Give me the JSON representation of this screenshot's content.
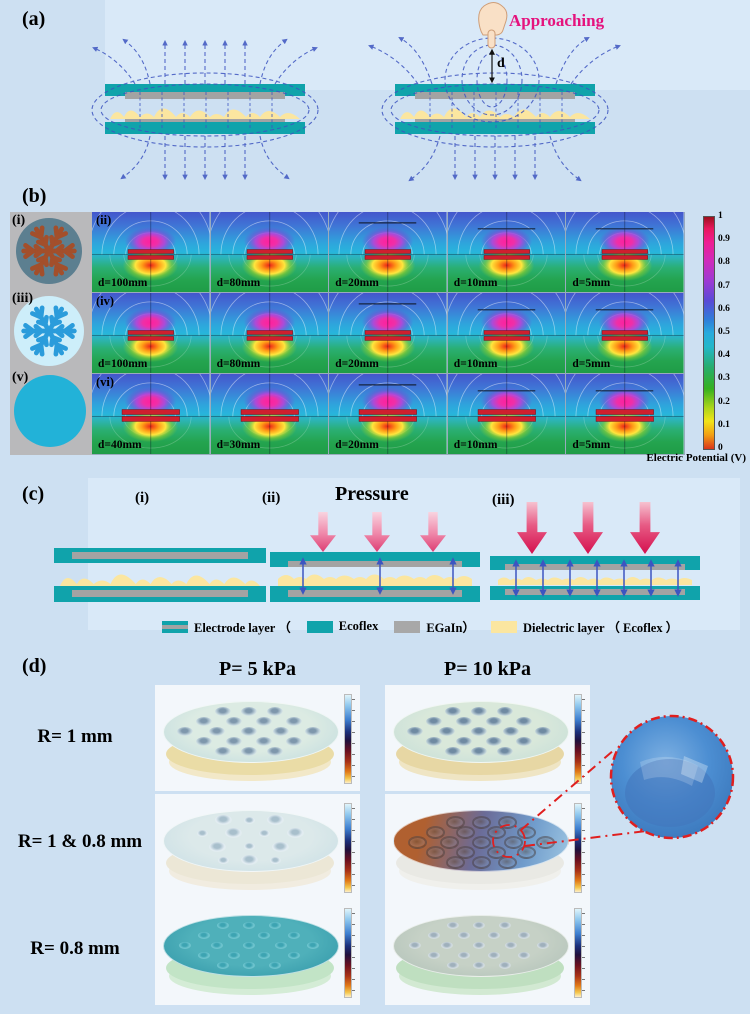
{
  "panel_a": {
    "label": "(a)",
    "approaching": "Approaching",
    "distance": "d"
  },
  "panel_b": {
    "label": "(b)",
    "icons": [
      {
        "id": "(i)",
        "name": "snowflake-icon",
        "circle": "#5c7f90",
        "flake": "#a34f2b"
      },
      {
        "id": "(iii)",
        "name": "snowflake-icon",
        "circle": "#cdeefa",
        "flake": "#2b9cdb"
      },
      {
        "id": "(v)",
        "name": "plain-circle-icon",
        "circle": "#22b2d8",
        "flake": ""
      }
    ],
    "rows": [
      {
        "id": "(ii)",
        "labels": [
          "d=100mm",
          "d=80mm",
          "d=20mm",
          "d=10mm",
          "d=5mm"
        ]
      },
      {
        "id": "(iv)",
        "labels": [
          "d=100mm",
          "d=80mm",
          "d=20mm",
          "d=10mm",
          "d=5mm"
        ]
      },
      {
        "id": "(vi)",
        "labels": [
          "d=40mm",
          "d=30mm",
          "d=20mm",
          "d=10mm",
          "d=5mm"
        ]
      }
    ],
    "colorbar": {
      "ticks": [
        "1",
        "0.9",
        "0.8",
        "0.7",
        "0.6",
        "0.5",
        "0.4",
        "0.3",
        "0.2",
        "0.1",
        "0"
      ],
      "label": "Electric Potential (V)"
    }
  },
  "panel_c": {
    "label": "(c)",
    "sub_i": "(i)",
    "sub_ii": "(ii)",
    "sub_iii": "(iii)",
    "pressure": "Pressure",
    "legend": [
      {
        "label": "Electrode layer （"
      },
      {
        "label": "Ecoflex"
      },
      {
        "label": "EGaIn）"
      },
      {
        "label": "Dielectric layer （ Ecoflex ）"
      }
    ]
  },
  "panel_d": {
    "label": "(d)",
    "columns": [
      "P= 5 kPa",
      "P= 10 kPa"
    ],
    "rows": [
      "R= 1 mm",
      "R= 1 & 0.8 mm",
      "R= 0.8 mm"
    ],
    "cards": [
      {
        "pattern": "r1",
        "top": [
          "#dcebe3",
          "#bdd9de"
        ],
        "base": "#eadca6",
        "base_low": "#f2e8c8",
        "bump_dark": "#7e97ac",
        "bump_light": "#c4d6de"
      },
      {
        "pattern": "r1",
        "top": [
          "#d9e8da",
          "#c2dcd8"
        ],
        "base": "#e7d7a4",
        "base_low": "#efe5c4",
        "bump_dark": "#6f8aa2",
        "bump_light": "#b7cbd4"
      },
      {
        "pattern": "mix",
        "top": [
          "#dce9ea",
          "#c6dde4"
        ],
        "base": "#ece7d6",
        "base_low": "#f1ece0",
        "bump_dark": "#a8bfcc",
        "bump_light": "#e2ecf2"
      },
      {
        "pattern": "ring",
        "top": [
          "#b06030",
          "#6b6b97",
          "#6f9bcb"
        ],
        "base": "#e9e9e4",
        "base_low": "#f0f0ec",
        "bump_dark": "#5a4a3a",
        "bump_light": "#8a98b0"
      },
      {
        "pattern": "r08",
        "top": [
          "#4fb0ba",
          "#2e94a6"
        ],
        "base": "#c2e4c6",
        "base_low": "#d4ecd6",
        "bump_dark": "#3da4b2",
        "bump_light": "#6fc6d0"
      },
      {
        "pattern": "r08",
        "top": [
          "#c6d1c6",
          "#aebfb6"
        ],
        "base": "#bfdfc0",
        "base_low": "#d2e9d2",
        "bump_dark": "#9fb0bc",
        "bump_light": "#d2dce2"
      }
    ],
    "inset": {
      "fill": "#4c8ed2",
      "border": "#e01f1f"
    }
  },
  "colors": {
    "background": "#cde0f2",
    "panel_bg": "#d9e9f8",
    "teal": "#10a3ab",
    "gray": "#a3a3a3",
    "yellow": "#fbe6a0",
    "magenta": "#e5127d",
    "field_blue": "#3d55c0"
  }
}
